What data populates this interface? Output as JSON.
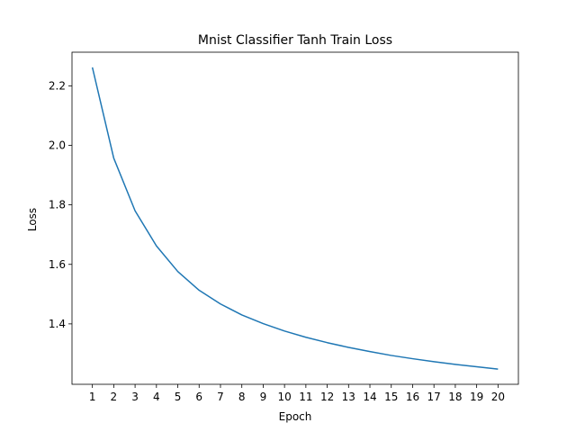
{
  "chart_data": {
    "type": "line",
    "title": "Mnist Classifier Tanh Train Loss",
    "xlabel": "Epoch",
    "ylabel": "Loss",
    "x": [
      1,
      2,
      3,
      4,
      5,
      6,
      7,
      8,
      9,
      10,
      11,
      12,
      13,
      14,
      15,
      16,
      17,
      18,
      19,
      20
    ],
    "series": [
      {
        "values": [
          2.262,
          1.957,
          1.78,
          1.662,
          1.576,
          1.513,
          1.467,
          1.43,
          1.401,
          1.376,
          1.355,
          1.337,
          1.321,
          1.307,
          1.294,
          1.283,
          1.273,
          1.264,
          1.256,
          1.248
        ]
      }
    ],
    "xlim": [
      0.045,
      20.955
    ],
    "ylim": [
      1.197,
      2.313
    ],
    "x_ticks": [
      "1",
      "2",
      "3",
      "4",
      "5",
      "6",
      "7",
      "8",
      "9",
      "10",
      "11",
      "12",
      "13",
      "14",
      "15",
      "16",
      "17",
      "18",
      "19",
      "20"
    ],
    "y_ticks": [
      "1.4",
      "1.6",
      "1.8",
      "2.0",
      "2.2"
    ],
    "y_tick_values": [
      1.4,
      1.6,
      1.8,
      2.0,
      2.2
    ],
    "grid": false,
    "line_color": "#1f77b4"
  }
}
